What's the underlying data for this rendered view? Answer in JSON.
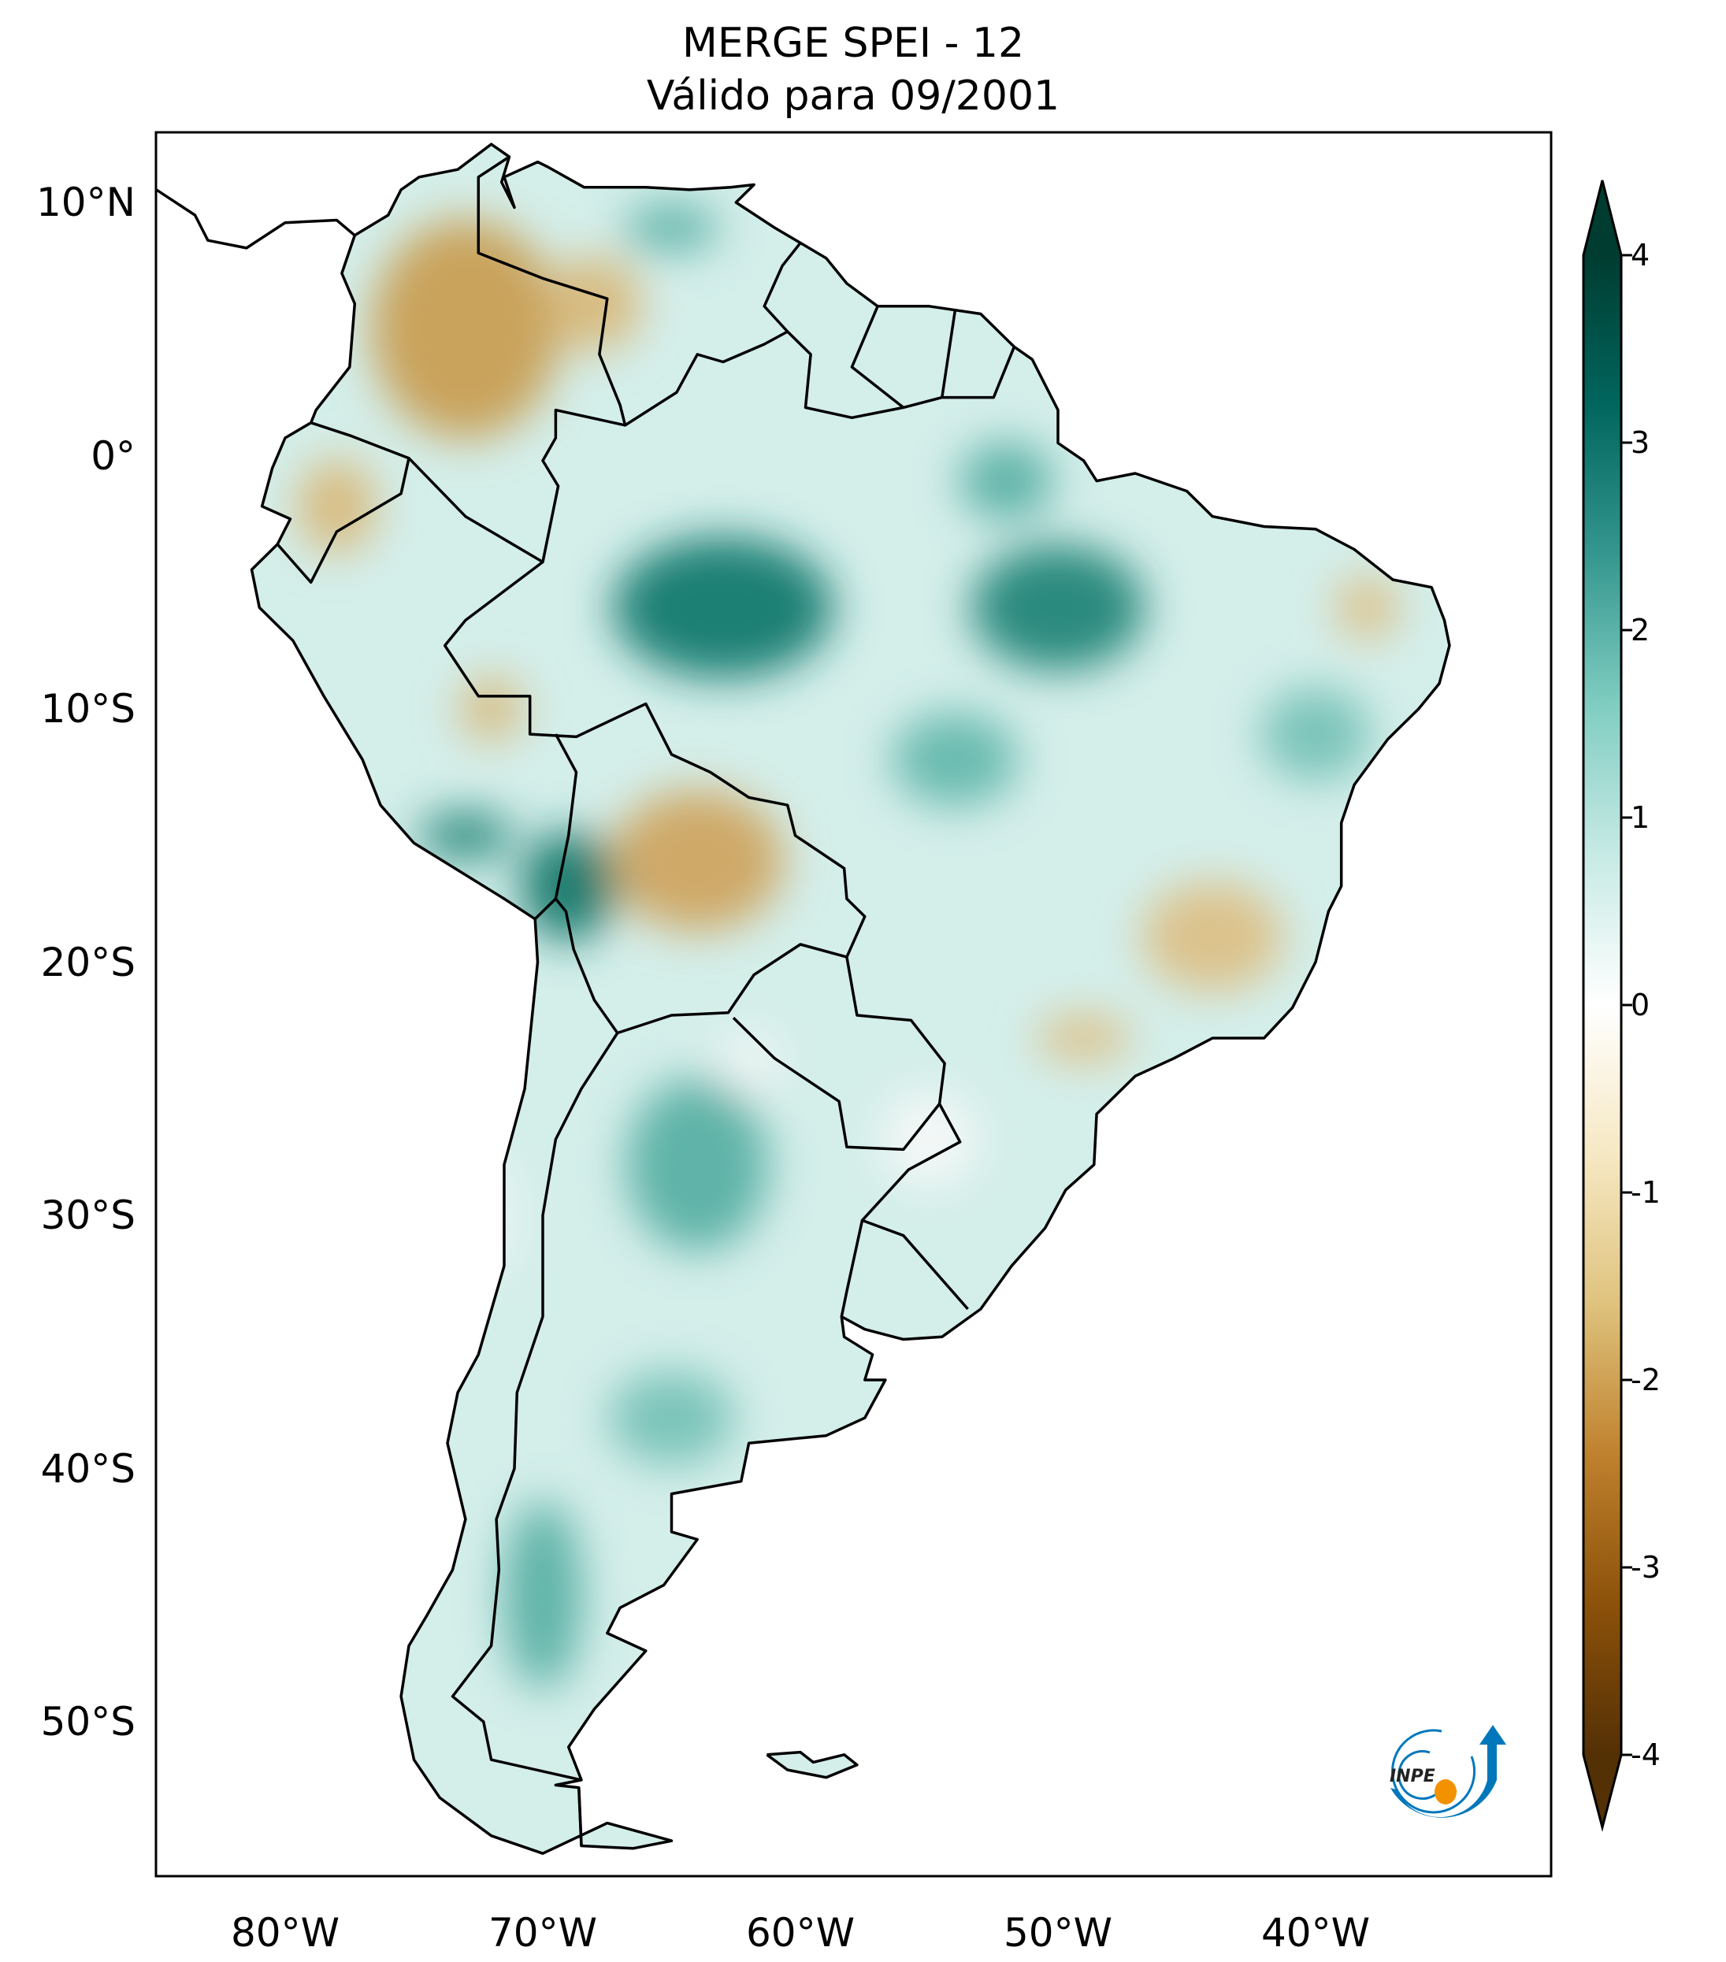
{
  "title": {
    "line1": "MERGE   SPEI - 12",
    "line2": "Válido para 09/2001"
  },
  "map": {
    "extent_lon": [
      -85,
      -31
    ],
    "extent_lat": [
      -56.1,
      12.8
    ],
    "lat_labels": [
      {
        "lat": 10,
        "label": "10°N"
      },
      {
        "lat": 0,
        "label": "0°"
      },
      {
        "lat": -10,
        "label": "10°S"
      },
      {
        "lat": -20,
        "label": "20°S"
      },
      {
        "lat": -30,
        "label": "30°S"
      },
      {
        "lat": -40,
        "label": "40°S"
      },
      {
        "lat": -50,
        "label": "50°S"
      }
    ],
    "lon_labels": [
      {
        "lon": -80,
        "label": "80°W"
      },
      {
        "lon": -70,
        "label": "70°W"
      },
      {
        "lon": -60,
        "label": "60°W"
      },
      {
        "lon": -50,
        "label": "50°W"
      },
      {
        "lon": -40,
        "label": "40°W"
      }
    ]
  },
  "colorbar": {
    "min": -4,
    "max": 4,
    "extend": "both",
    "ticks": [
      {
        "value": 4,
        "label": "4"
      },
      {
        "value": 3,
        "label": "3"
      },
      {
        "value": 2,
        "label": "2"
      },
      {
        "value": 1,
        "label": "1"
      },
      {
        "value": 0,
        "label": "0"
      },
      {
        "value": -1,
        "label": "-1"
      },
      {
        "value": -2,
        "label": "-2"
      },
      {
        "value": -3,
        "label": "-3"
      },
      {
        "value": -4,
        "label": "-4"
      }
    ],
    "colors": [
      "#543005",
      "#8c510a",
      "#bf812d",
      "#dfc27d",
      "#f6e8c3",
      "#ffffff",
      "#c7eae5",
      "#80cdc1",
      "#35978f",
      "#01665e",
      "#003c30"
    ]
  },
  "logo": {
    "text": "INPE",
    "blue": "#0077bb",
    "orange": "#f39200"
  }
}
